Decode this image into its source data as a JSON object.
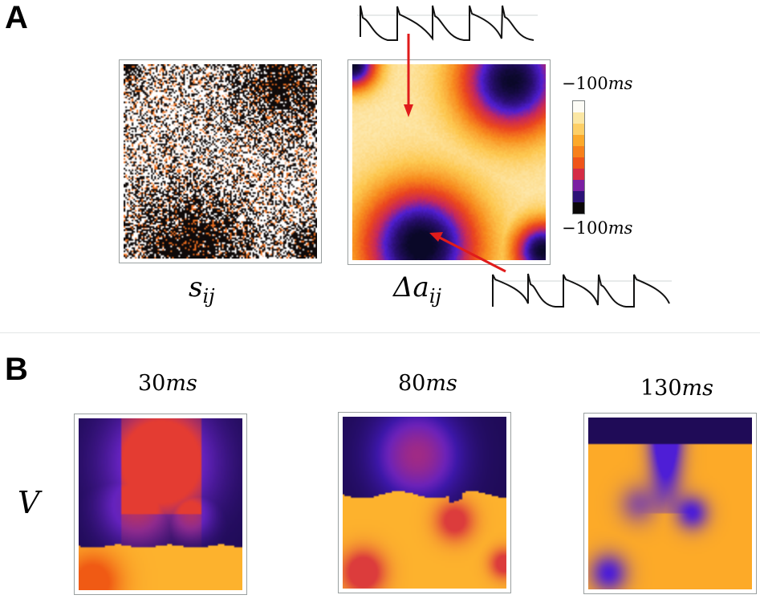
{
  "panels": {
    "A": {
      "label": "A",
      "left_map": {
        "caption_base": "s",
        "caption_sub": "ij"
      },
      "right_map": {
        "caption_base": "Δa",
        "caption_sub": "ij"
      },
      "colorbar": {
        "top_label_num": "−100",
        "top_label_unit": "ms",
        "bottom_label_num": "−100",
        "bottom_label_unit": "ms",
        "colors": [
          "#fdfcf6",
          "#fbe7a4",
          "#fdcf66",
          "#fca92a",
          "#f7801a",
          "#ef5419",
          "#d42c45",
          "#7b1fa2",
          "#2c1277",
          "#0a0808"
        ]
      },
      "traces": {
        "top": "action-potential-trace-alternans",
        "bottom": "action-potential-trace-alternans"
      },
      "arrow_color": "#e01b1b"
    },
    "B": {
      "label": "B",
      "row_label": "V",
      "snapshots": [
        {
          "time_num": "30",
          "time_unit": "ms"
        },
        {
          "time_num": "80",
          "time_unit": "ms"
        },
        {
          "time_num": "130",
          "time_unit": "ms"
        }
      ]
    }
  },
  "palette": {
    "dark_purple": "#1f0b57",
    "blue_purple": "#4f1ed6",
    "red": "#e1382d",
    "orange": "#f7861e",
    "yellow_orange": "#fdb22d",
    "pale_yellow": "#fdf3c4"
  }
}
